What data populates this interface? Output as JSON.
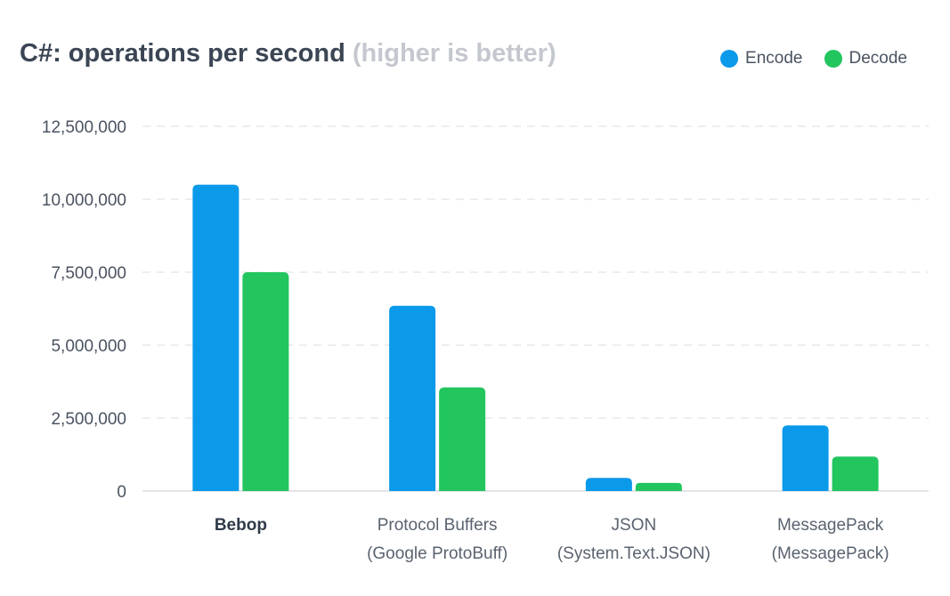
{
  "header": {
    "title": "C#: operations per second",
    "subtitle": "(higher is better)"
  },
  "legend": {
    "placement": "top-right",
    "items": [
      {
        "label": "Encode",
        "color": "#0b99ea"
      },
      {
        "label": "Decode",
        "color": "#22c55e"
      }
    ]
  },
  "chart_data": {
    "type": "bar",
    "title": "C#: operations per second",
    "subtitle": "(higher is better)",
    "categories": [
      {
        "name": "Bebop",
        "sub": "",
        "bold": true
      },
      {
        "name": "Protocol Buffers",
        "sub": "(Google ProtoBuff)",
        "bold": false
      },
      {
        "name": "JSON",
        "sub": "(System.Text.JSON)",
        "bold": false
      },
      {
        "name": "MessagePack",
        "sub": "(MessagePack)",
        "bold": false
      }
    ],
    "series": [
      {
        "name": "Encode",
        "color": "#0b99ea",
        "values": [
          10500000,
          6350000,
          450000,
          2250000
        ]
      },
      {
        "name": "Decode",
        "color": "#22c55e",
        "values": [
          7500000,
          3550000,
          280000,
          1180000
        ]
      }
    ],
    "yticks": [
      "0",
      "2,500,000",
      "5,000,000",
      "7,500,000",
      "10,000,000",
      "12,500,000"
    ],
    "ytick_values": [
      0,
      2500000,
      5000000,
      7500000,
      10000000,
      12500000
    ],
    "ylim": [
      0,
      12500000
    ],
    "grid": true,
    "xlabel": "",
    "ylabel": ""
  }
}
